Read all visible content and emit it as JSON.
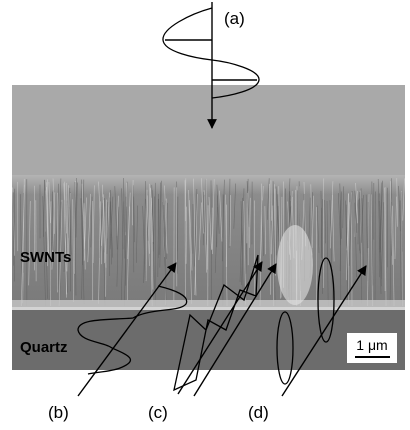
{
  "panel_labels": [
    "(a)",
    "(b)",
    "(c)",
    "(d)"
  ],
  "region_labels": [
    "SWNTs",
    "Quartz"
  ],
  "scale_bar": "1 μm"
}
